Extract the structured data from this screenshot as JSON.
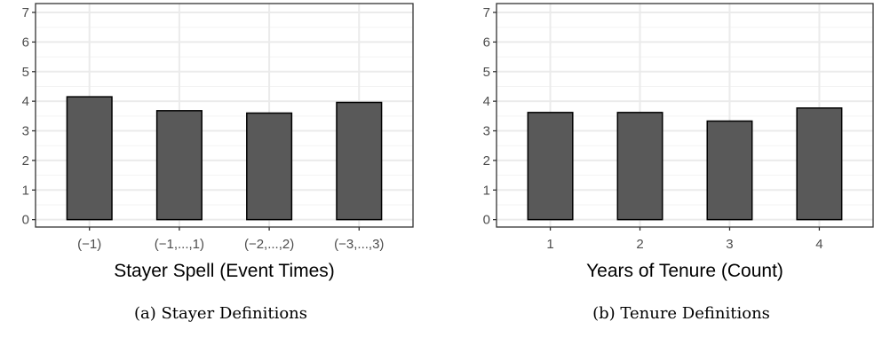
{
  "colors": {
    "bar_fill": "#595959",
    "bar_stroke": "#000000",
    "grid_major": "#ebebeb",
    "grid_minor": "#f3f3f3",
    "panel_border": "#333333",
    "tick_text": "#4d4d4d"
  },
  "chart_data": [
    {
      "type": "bar",
      "title": "",
      "xlabel": "Stayer Spell (Event Times)",
      "ylabel": "",
      "caption": "(a) Stayer Definitions",
      "categories": [
        "(−1)",
        "(−1,...,1)",
        "(−2,...,2)",
        "(−3,...,3)"
      ],
      "values": [
        4.15,
        3.68,
        3.6,
        3.96
      ],
      "ylim": [
        -0.25,
        7.3
      ],
      "yticks": [
        0,
        1,
        2,
        3,
        4,
        5,
        6,
        7
      ],
      "grid": true,
      "legend": "none"
    },
    {
      "type": "bar",
      "title": "",
      "xlabel": "Years of Tenure (Count)",
      "ylabel": "",
      "caption": "(b) Tenure Definitions",
      "categories": [
        "1",
        "2",
        "3",
        "4"
      ],
      "values": [
        3.62,
        3.62,
        3.33,
        3.77
      ],
      "ylim": [
        -0.25,
        7.3
      ],
      "yticks": [
        0,
        1,
        2,
        3,
        4,
        5,
        6,
        7
      ],
      "grid": true,
      "legend": "none"
    }
  ]
}
